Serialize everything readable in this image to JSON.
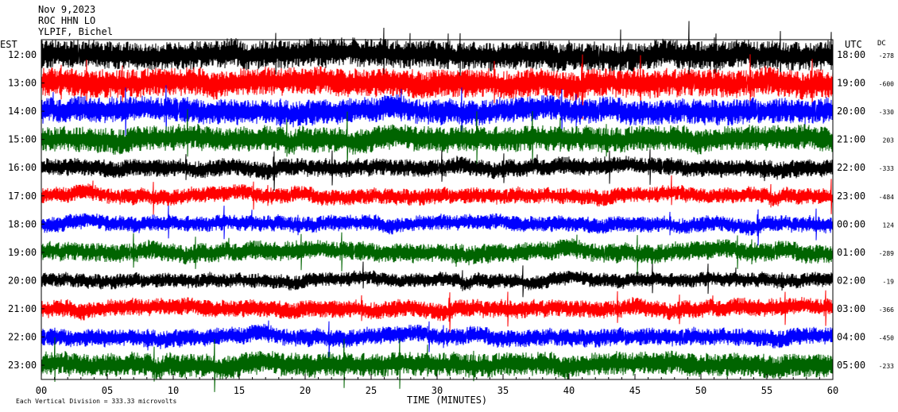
{
  "header": {
    "date": "Nov 9,2023",
    "station": "ROC HHN LO",
    "location": "YLPIF, Bichel"
  },
  "colors": {
    "background": "#ffffff",
    "axis": "#000000",
    "trace_cycle": [
      "#000000",
      "#ff0000",
      "#0000ff",
      "#006400"
    ]
  },
  "chart_data": {
    "type": "line",
    "title": "",
    "xlabel": "TIME (MINUTES)",
    "left_axis_label": "EST",
    "right_axis_label": "UTC",
    "dc_label": "DC",
    "x_range": [
      0,
      60
    ],
    "x_ticks": [
      "00",
      "05",
      "10",
      "15",
      "20",
      "25",
      "30",
      "35",
      "40",
      "45",
      "50",
      "55",
      "60"
    ],
    "rows": [
      {
        "est": "12:00",
        "utc": "18:00",
        "dc": "-278",
        "color": "#000000"
      },
      {
        "est": "13:00",
        "utc": "19:00",
        "dc": "-600",
        "color": "#ff0000"
      },
      {
        "est": "14:00",
        "utc": "20:00",
        "dc": "-330",
        "color": "#0000ff"
      },
      {
        "est": "15:00",
        "utc": "21:00",
        "dc": "203",
        "color": "#006400"
      },
      {
        "est": "16:00",
        "utc": "22:00",
        "dc": "-333",
        "color": "#000000"
      },
      {
        "est": "17:00",
        "utc": "23:00",
        "dc": "-484",
        "color": "#ff0000"
      },
      {
        "est": "18:00",
        "utc": "00:00",
        "dc": "124",
        "color": "#0000ff"
      },
      {
        "est": "19:00",
        "utc": "01:00",
        "dc": "-289",
        "color": "#006400"
      },
      {
        "est": "20:00",
        "utc": "02:00",
        "dc": "-19",
        "color": "#000000"
      },
      {
        "est": "21:00",
        "utc": "03:00",
        "dc": "-366",
        "color": "#ff0000"
      },
      {
        "est": "22:00",
        "utc": "04:00",
        "dc": "-450",
        "color": "#0000ff"
      },
      {
        "est": "23:00",
        "utc": "05:00",
        "dc": "-233",
        "color": "#006400"
      }
    ],
    "scale_note": "Each Vertical Division =  333.33 microvolts",
    "grid": false
  }
}
